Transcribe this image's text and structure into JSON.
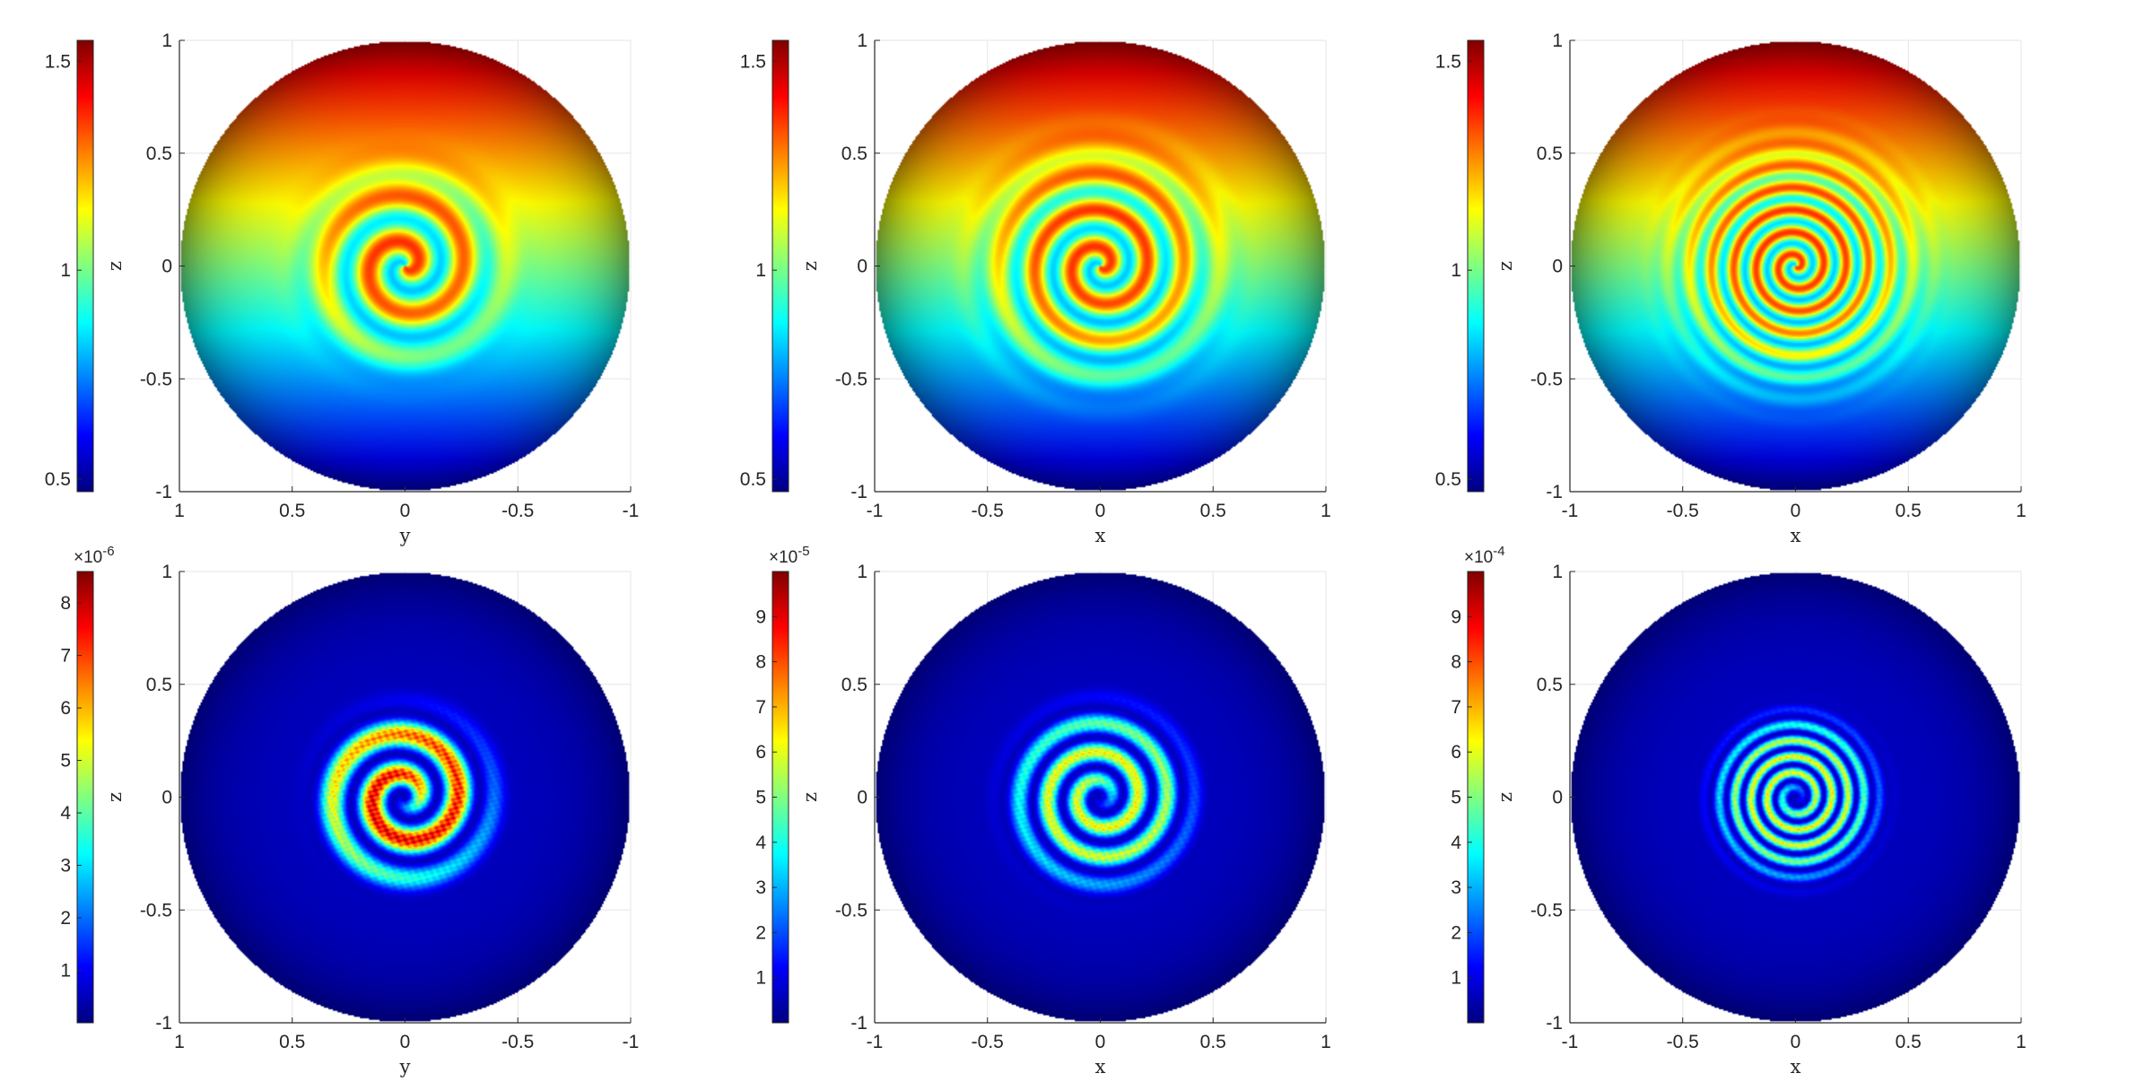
{
  "colors": {
    "jet": [
      "#000080",
      "#0000ff",
      "#0080ff",
      "#00ffff",
      "#80ff80",
      "#ffff00",
      "#ff8000",
      "#ff0000",
      "#800000"
    ],
    "axis": "#262626",
    "grid": "#e6e6e6"
  },
  "chart_data": [
    {
      "id": "p1",
      "type": "heatmap",
      "row": 0,
      "col": 0,
      "kind": "solution",
      "xlabel": "y",
      "ylabel": "z",
      "xticks": [
        "1",
        "0.5",
        "0",
        "-0.5",
        "-1"
      ],
      "yticks": [
        "1",
        "0.5",
        "0",
        "-0.5",
        "-1"
      ],
      "xlim": [
        1,
        -1
      ],
      "ylim": [
        -1,
        1
      ],
      "colorbar": {
        "ticks": [
          "1.5",
          "1",
          "0.5"
        ],
        "tick_values": [
          1.5,
          1,
          0.5
        ],
        "range": [
          0.47,
          1.55
        ],
        "multiplier": ""
      },
      "field": {
        "spiral_turns": 1.5,
        "spiral_extent": 0.42,
        "rings": 2
      }
    },
    {
      "id": "p2",
      "type": "heatmap",
      "row": 0,
      "col": 1,
      "kind": "solution",
      "xlabel": "x",
      "ylabel": "z",
      "xticks": [
        "-1",
        "-0.5",
        "0",
        "0.5",
        "1"
      ],
      "yticks": [
        "1",
        "0.5",
        "0",
        "-0.5",
        "-1"
      ],
      "xlim": [
        -1,
        1
      ],
      "ylim": [
        -1,
        1
      ],
      "colorbar": {
        "ticks": [
          "1.5",
          "1",
          "0.5"
        ],
        "tick_values": [
          1.5,
          1,
          0.5
        ],
        "range": [
          0.47,
          1.55
        ],
        "multiplier": ""
      },
      "field": {
        "spiral_turns": 2.5,
        "spiral_extent": 0.5,
        "rings": 3
      }
    },
    {
      "id": "p3",
      "type": "heatmap",
      "row": 0,
      "col": 2,
      "kind": "solution",
      "xlabel": "x",
      "ylabel": "z",
      "xticks": [
        "-1",
        "-0.5",
        "0",
        "0.5",
        "1"
      ],
      "yticks": [
        "1",
        "0.5",
        "0",
        "-0.5",
        "-1"
      ],
      "xlim": [
        -1,
        1
      ],
      "ylim": [
        -1,
        1
      ],
      "colorbar": {
        "ticks": [
          "1.5",
          "1",
          "0.5"
        ],
        "tick_values": [
          1.5,
          1,
          0.5
        ],
        "range": [
          0.47,
          1.55
        ],
        "multiplier": ""
      },
      "field": {
        "spiral_turns": 4.5,
        "spiral_extent": 0.5,
        "rings": 5
      }
    },
    {
      "id": "p4",
      "type": "heatmap",
      "row": 1,
      "col": 0,
      "kind": "error",
      "xlabel": "y",
      "ylabel": "z",
      "xticks": [
        "1",
        "0.5",
        "0",
        "-0.5",
        "-1"
      ],
      "yticks": [
        "1",
        "0.5",
        "0",
        "-0.5",
        "-1"
      ],
      "xlim": [
        1,
        -1
      ],
      "ylim": [
        -1,
        1
      ],
      "colorbar": {
        "ticks": [
          "8",
          "7",
          "6",
          "5",
          "4",
          "3",
          "2",
          "1"
        ],
        "tick_values": [
          8,
          7,
          6,
          5,
          4,
          3,
          2,
          1
        ],
        "range": [
          0,
          8.6
        ],
        "multiplier": "×10",
        "exponent": "-6"
      },
      "field": {
        "spiral_turns": 2,
        "spiral_extent": 0.38,
        "peak": 0.95
      }
    },
    {
      "id": "p5",
      "type": "heatmap",
      "row": 1,
      "col": 1,
      "kind": "error",
      "xlabel": "x",
      "ylabel": "z",
      "xticks": [
        "-1",
        "-0.5",
        "0",
        "0.5",
        "1"
      ],
      "yticks": [
        "1",
        "0.5",
        "0",
        "-0.5",
        "-1"
      ],
      "xlim": [
        -1,
        1
      ],
      "ylim": [
        -1,
        1
      ],
      "colorbar": {
        "ticks": [
          "9",
          "8",
          "7",
          "6",
          "5",
          "4",
          "3",
          "2",
          "1"
        ],
        "tick_values": [
          9,
          8,
          7,
          6,
          5,
          4,
          3,
          2,
          1
        ],
        "range": [
          0,
          10
        ],
        "multiplier": "×10",
        "exponent": "-5"
      },
      "field": {
        "spiral_turns": 3,
        "spiral_extent": 0.4,
        "peak": 0.65
      }
    },
    {
      "id": "p6",
      "type": "heatmap",
      "row": 1,
      "col": 2,
      "kind": "error",
      "xlabel": "x",
      "ylabel": "z",
      "xticks": [
        "-1",
        "-0.5",
        "0",
        "0.5",
        "1"
      ],
      "yticks": [
        "1",
        "0.5",
        "0",
        "-0.5",
        "-1"
      ],
      "xlim": [
        -1,
        1
      ],
      "ylim": [
        -1,
        1
      ],
      "colorbar": {
        "ticks": [
          "9",
          "8",
          "7",
          "6",
          "5",
          "4",
          "3",
          "2",
          "1"
        ],
        "tick_values": [
          9,
          8,
          7,
          6,
          5,
          4,
          3,
          2,
          1
        ],
        "range": [
          0,
          10
        ],
        "multiplier": "×10",
        "exponent": "-4"
      },
      "field": {
        "spiral_turns": 5,
        "spiral_extent": 0.36,
        "peak": 0.65
      }
    }
  ]
}
